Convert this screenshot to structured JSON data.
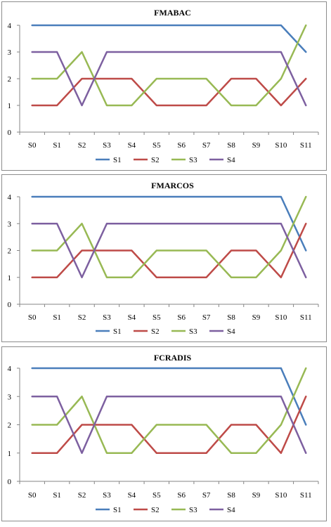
{
  "chart_data": [
    {
      "type": "line",
      "title": "FMABAC",
      "x": [
        "S0",
        "S1",
        "S2",
        "S3",
        "S4",
        "S5",
        "S6",
        "S7",
        "S8",
        "S9",
        "S10",
        "S11"
      ],
      "ylim": [
        0,
        4
      ],
      "yticks": [
        0,
        1,
        2,
        3,
        4
      ],
      "grid": false,
      "legend_position": "bottom",
      "series": [
        {
          "name": "S1",
          "color": "#4a7ebb",
          "values": [
            4,
            4,
            4,
            4,
            4,
            4,
            4,
            4,
            4,
            4,
            4,
            3
          ]
        },
        {
          "name": "S2",
          "color": "#be4b48",
          "values": [
            1,
            1,
            2,
            2,
            2,
            1,
            1,
            1,
            2,
            2,
            1,
            2
          ]
        },
        {
          "name": "S3",
          "color": "#98b954",
          "values": [
            2,
            2,
            3,
            1,
            1,
            2,
            2,
            2,
            1,
            1,
            2,
            4
          ]
        },
        {
          "name": "S4",
          "color": "#7d60a0",
          "values": [
            3,
            3,
            1,
            3,
            3,
            3,
            3,
            3,
            3,
            3,
            3,
            1
          ]
        }
      ]
    },
    {
      "type": "line",
      "title": "FMARCOS",
      "x": [
        "S0",
        "S1",
        "S2",
        "S3",
        "S4",
        "S5",
        "S6",
        "S7",
        "S8",
        "S9",
        "S10",
        "S11"
      ],
      "ylim": [
        0,
        4
      ],
      "yticks": [
        0,
        1,
        2,
        3,
        4
      ],
      "grid": false,
      "legend_position": "bottom",
      "series": [
        {
          "name": "S1",
          "color": "#4a7ebb",
          "values": [
            4,
            4,
            4,
            4,
            4,
            4,
            4,
            4,
            4,
            4,
            4,
            2
          ]
        },
        {
          "name": "S2",
          "color": "#be4b48",
          "values": [
            1,
            1,
            2,
            2,
            2,
            1,
            1,
            1,
            2,
            2,
            1,
            3
          ]
        },
        {
          "name": "S3",
          "color": "#98b954",
          "values": [
            2,
            2,
            3,
            1,
            1,
            2,
            2,
            2,
            1,
            1,
            2,
            4
          ]
        },
        {
          "name": "S4",
          "color": "#7d60a0",
          "values": [
            3,
            3,
            1,
            3,
            3,
            3,
            3,
            3,
            3,
            3,
            3,
            1
          ]
        }
      ]
    },
    {
      "type": "line",
      "title": "FCRADIS",
      "x": [
        "S0",
        "S1",
        "S2",
        "S3",
        "S4",
        "S5",
        "S6",
        "S7",
        "S8",
        "S9",
        "S10",
        "S11"
      ],
      "ylim": [
        0,
        4
      ],
      "yticks": [
        0,
        1,
        2,
        3,
        4
      ],
      "grid": false,
      "legend_position": "bottom",
      "series": [
        {
          "name": "S1",
          "color": "#4a7ebb",
          "values": [
            4,
            4,
            4,
            4,
            4,
            4,
            4,
            4,
            4,
            4,
            4,
            2
          ]
        },
        {
          "name": "S2",
          "color": "#be4b48",
          "values": [
            1,
            1,
            2,
            2,
            2,
            1,
            1,
            1,
            2,
            2,
            1,
            3
          ]
        },
        {
          "name": "S3",
          "color": "#98b954",
          "values": [
            2,
            2,
            3,
            1,
            1,
            2,
            2,
            2,
            1,
            1,
            2,
            4
          ]
        },
        {
          "name": "S4",
          "color": "#7d60a0",
          "values": [
            3,
            3,
            1,
            3,
            3,
            3,
            3,
            3,
            3,
            3,
            3,
            1
          ]
        }
      ]
    }
  ]
}
